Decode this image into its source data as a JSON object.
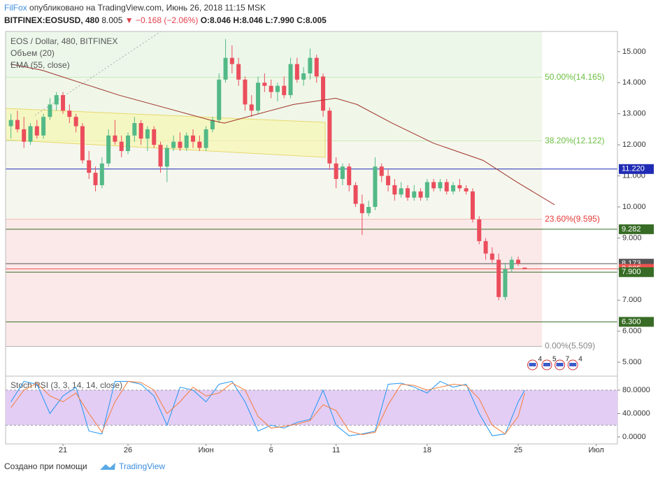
{
  "chart_data": {
    "type": "candlestick",
    "header": {
      "author": "FilFox",
      "published": "опубликовано на TradingView.com, Июнь 26, 2018 11:15 MSK",
      "symbol": "BITFINEX:EOSUSD, 480",
      "last": "8.005",
      "change": "▼ −0.168 (−2.06%)",
      "ohlc": [
        "O:8.046",
        "H:8.046",
        "L:7.990",
        "C:8.005"
      ]
    },
    "legend": [
      "EOS / Dollar, 480, BITFINEX",
      "Объем (20)",
      "EMA (55, close)"
    ],
    "footer": {
      "text": "Создано при помощи",
      "brand": "TradingView"
    },
    "up_color": "#53b987",
    "down_color": "#eb4d5c",
    "xlim": [
      16.59,
      63.63
    ],
    "xticks": [
      21,
      26,
      {
        "value": 32,
        "label": "Июн"
      },
      37,
      42,
      49,
      56,
      {
        "value": 62,
        "label": "Июл"
      }
    ],
    "xtick_labels": [
      "21",
      "26",
      "Июн",
      "6",
      "11",
      "18",
      "25",
      "Июл"
    ],
    "ylim": [
      4.62,
      15.65
    ],
    "yticks": [
      {
        "value": 5,
        "label": "5.000"
      },
      {
        "value": 6,
        "label": "6.000"
      },
      {
        "value": 7,
        "label": "7.000"
      },
      {
        "value": 8,
        "label": "8.000"
      },
      {
        "value": 9,
        "label": "9.000"
      },
      {
        "value": 10,
        "label": "10.000"
      },
      {
        "value": 11,
        "label": "11.000"
      },
      {
        "value": 12,
        "label": "12.000"
      },
      {
        "value": 13,
        "label": "13.000"
      },
      {
        "value": 14,
        "label": "14.000"
      },
      {
        "value": 15,
        "label": "15.000"
      }
    ],
    "candles": [
      [
        17,
        12.6,
        13.0,
        12.2,
        12.8
      ],
      [
        17.5,
        12.8,
        13.1,
        12.4,
        12.5
      ],
      [
        18,
        12.5,
        12.9,
        11.9,
        12.1
      ],
      [
        18.5,
        12.1,
        12.7,
        12.0,
        12.6
      ],
      [
        19,
        12.6,
        12.8,
        12.2,
        12.3
      ],
      [
        19.5,
        12.3,
        13.0,
        12.2,
        12.9
      ],
      [
        20,
        12.9,
        13.5,
        12.8,
        13.3
      ],
      [
        20.5,
        13.3,
        13.7,
        13.1,
        13.6
      ],
      [
        21,
        13.6,
        13.7,
        13.0,
        13.1
      ],
      [
        21.5,
        13.1,
        13.3,
        12.7,
        12.9
      ],
      [
        22,
        12.9,
        13.0,
        12.4,
        12.6
      ],
      [
        22.5,
        12.6,
        12.7,
        11.4,
        11.5
      ],
      [
        23,
        11.5,
        11.8,
        10.9,
        11.1
      ],
      [
        23.5,
        11.1,
        11.3,
        10.5,
        10.7
      ],
      [
        24,
        10.7,
        11.6,
        10.6,
        11.4
      ],
      [
        24.5,
        11.4,
        12.5,
        11.3,
        12.3
      ],
      [
        25,
        12.3,
        12.8,
        12.0,
        12.1
      ],
      [
        25.5,
        12.1,
        12.3,
        11.6,
        11.8
      ],
      [
        26,
        11.8,
        12.4,
        11.7,
        12.3
      ],
      [
        26.5,
        12.3,
        12.9,
        12.1,
        12.7
      ],
      [
        27,
        12.7,
        12.8,
        12.0,
        12.2
      ],
      [
        27.5,
        12.2,
        12.6,
        11.8,
        12.5
      ],
      [
        28,
        12.5,
        12.6,
        11.9,
        12.0
      ],
      [
        28.5,
        12.0,
        12.1,
        11.1,
        11.3
      ],
      [
        29,
        11.3,
        12.0,
        10.8,
        11.9
      ],
      [
        29.5,
        11.9,
        12.3,
        11.8,
        12.1
      ],
      [
        30,
        12.1,
        12.4,
        11.8,
        11.9
      ],
      [
        30.5,
        11.9,
        12.4,
        11.8,
        12.3
      ],
      [
        31,
        12.3,
        12.5,
        11.9,
        12.1
      ],
      [
        31.5,
        12.1,
        12.3,
        11.8,
        11.9
      ],
      [
        32,
        11.9,
        12.6,
        11.8,
        12.5
      ],
      [
        32.5,
        12.5,
        12.9,
        12.4,
        12.8
      ],
      [
        33,
        12.8,
        14.3,
        12.7,
        14.1
      ],
      [
        33.5,
        14.1,
        15.4,
        14.0,
        14.8
      ],
      [
        34,
        14.8,
        15.2,
        14.3,
        14.6
      ],
      [
        34.5,
        14.6,
        14.8,
        13.9,
        14.1
      ],
      [
        35,
        14.1,
        14.2,
        13.1,
        13.3
      ],
      [
        35.5,
        13.3,
        13.6,
        12.9,
        13.1
      ],
      [
        36,
        13.1,
        14.2,
        13.0,
        14.0
      ],
      [
        36.5,
        14.0,
        14.3,
        13.7,
        13.9
      ],
      [
        37,
        13.9,
        14.1,
        13.5,
        13.7
      ],
      [
        37.5,
        13.7,
        14.0,
        13.4,
        13.9
      ],
      [
        38,
        13.9,
        14.2,
        13.5,
        13.6
      ],
      [
        38.5,
        13.6,
        14.8,
        13.5,
        14.6
      ],
      [
        39,
        14.6,
        14.8,
        14.0,
        14.1
      ],
      [
        39.5,
        14.1,
        14.5,
        13.9,
        14.3
      ],
      [
        40,
        14.3,
        15.1,
        14.1,
        14.8
      ],
      [
        40.5,
        14.8,
        14.9,
        14.0,
        14.2
      ],
      [
        41,
        14.2,
        14.3,
        12.9,
        13.1
      ],
      [
        41.5,
        13.1,
        13.2,
        11.2,
        11.4
      ],
      [
        42,
        11.4,
        11.6,
        10.6,
        10.9
      ],
      [
        42.5,
        10.9,
        11.4,
        10.7,
        11.3
      ],
      [
        43,
        11.3,
        11.4,
        10.5,
        10.7
      ],
      [
        43.5,
        10.7,
        10.8,
        10.0,
        10.1
      ],
      [
        44,
        10.1,
        10.4,
        9.1,
        9.8
      ],
      [
        44.5,
        9.8,
        10.2,
        9.7,
        10.0
      ],
      [
        45,
        10.0,
        11.6,
        9.9,
        11.3
      ],
      [
        45.5,
        11.3,
        11.4,
        10.8,
        11.0
      ],
      [
        46,
        11.0,
        11.2,
        10.5,
        10.7
      ],
      [
        46.5,
        10.7,
        10.9,
        10.2,
        10.4
      ],
      [
        47,
        10.4,
        10.8,
        10.3,
        10.6
      ],
      [
        47.5,
        10.6,
        10.7,
        10.2,
        10.3
      ],
      [
        48,
        10.3,
        10.7,
        10.2,
        10.5
      ],
      [
        48.5,
        10.5,
        10.6,
        10.2,
        10.3
      ],
      [
        49,
        10.3,
        10.9,
        10.2,
        10.8
      ],
      [
        49.5,
        10.8,
        10.9,
        10.5,
        10.6
      ],
      [
        50,
        10.6,
        10.9,
        10.5,
        10.8
      ],
      [
        50.5,
        10.8,
        10.9,
        10.4,
        10.5
      ],
      [
        51,
        10.5,
        10.8,
        10.4,
        10.7
      ],
      [
        51.5,
        10.7,
        10.9,
        10.5,
        10.6
      ],
      [
        52,
        10.6,
        10.7,
        10.4,
        10.5
      ],
      [
        52.5,
        10.5,
        10.6,
        9.5,
        9.6
      ],
      [
        53,
        9.6,
        9.7,
        8.8,
        8.9
      ],
      [
        53.5,
        8.9,
        9.0,
        8.3,
        8.5
      ],
      [
        54,
        8.5,
        8.7,
        8.2,
        8.3
      ],
      [
        54.5,
        8.3,
        8.5,
        7.0,
        7.1
      ],
      [
        55,
        7.1,
        8.2,
        7.0,
        8.0
      ],
      [
        55.5,
        8.0,
        8.4,
        7.9,
        8.3
      ],
      [
        56,
        8.3,
        8.4,
        8.1,
        8.173
      ],
      [
        56.5,
        8.046,
        8.046,
        7.99,
        8.005
      ]
    ],
    "ema": {
      "color": "#a0322a",
      "x": [
        16.97,
        19.4,
        25.3,
        32.3,
        33.4,
        36.05,
        38.74,
        41.97,
        43.6,
        46.3,
        49.5,
        53.3,
        55.9,
        58.8
      ],
      "values": [
        14.6,
        14.4,
        13.6,
        12.8,
        12.7,
        13.0,
        13.3,
        13.5,
        13.3,
        12.7,
        12.05,
        11.5,
        10.8,
        10.07
      ]
    },
    "fib_end": 57.83,
    "fib": [
      {
        "value": 14.165,
        "label": "50.00%(14.165)",
        "color": "#6abf40",
        "fill": "#ecf7ea"
      },
      {
        "value": 12.122,
        "label": "38.20%(12.122)",
        "color": "#6abf40",
        "fill": "#f0f7e8"
      },
      {
        "value": 9.595,
        "label": "23.60%(9.595)",
        "color": "#e53935",
        "fill": "#f5f7ee"
      },
      {
        "value": 5.509,
        "label": "0.00%(5.509)",
        "color": "#888888",
        "fill": "#fbe9ea"
      }
    ],
    "price_lines": [
      {
        "value": 11.22,
        "label": "11.220",
        "color": "#1f2bb5"
      },
      {
        "value": 9.282,
        "label": "9.282",
        "color": "#386c26"
      },
      {
        "value": 8.173,
        "label": "8.173",
        "color": "#555555"
      },
      {
        "value": 8.005,
        "label": "8.005",
        "color": "#ef5350"
      },
      {
        "value": 7.9,
        "label": "7.900",
        "color": "#386c26"
      },
      {
        "value": 6.3,
        "label": "6.300",
        "color": "#386c26"
      }
    ],
    "events": [
      {
        "x": 57.1,
        "label": "4"
      },
      {
        "x": 58.2,
        "label": "5"
      },
      {
        "x": 59.2,
        "label": "7"
      },
      {
        "x": 60.2,
        "label": "4"
      }
    ],
    "stoch": {
      "label": "Stoch RSI (3, 3, 14, 14, close)",
      "ylim": [
        -8.4,
        101.5
      ],
      "band": [
        20,
        80
      ],
      "band_color": "#e3cdf5",
      "yticks": [
        {
          "value": 0,
          "label": "0.0000"
        },
        {
          "value": 40,
          "label": "40.0000"
        },
        {
          "value": 80,
          "label": "80.0000"
        }
      ],
      "x": [
        17,
        18,
        19,
        20,
        21,
        22,
        23,
        24,
        25,
        26,
        27,
        28,
        29,
        30,
        31,
        32,
        33,
        34,
        35,
        36,
        37,
        38,
        39,
        40,
        41,
        42,
        43,
        44,
        45,
        46,
        47,
        48,
        49,
        50,
        51,
        52,
        53,
        54,
        55,
        56,
        56.5
      ],
      "series": [
        {
          "color": "#2196f3",
          "values": [
            60,
            95,
            90,
            40,
            70,
            85,
            10,
            5,
            95,
            95,
            90,
            70,
            20,
            85,
            80,
            60,
            90,
            95,
            60,
            10,
            20,
            15,
            25,
            30,
            80,
            20,
            2,
            5,
            10,
            90,
            92,
            85,
            75,
            95,
            85,
            90,
            40,
            2,
            5,
            60,
            80
          ]
        },
        {
          "color": "#f57c3a",
          "values": [
            50,
            80,
            92,
            70,
            60,
            75,
            40,
            8,
            60,
            95,
            93,
            80,
            40,
            60,
            85,
            70,
            75,
            92,
            80,
            35,
            15,
            18,
            22,
            28,
            55,
            45,
            10,
            4,
            8,
            55,
            90,
            88,
            80,
            85,
            90,
            88,
            65,
            20,
            5,
            35,
            75
          ]
        }
      ]
    }
  }
}
